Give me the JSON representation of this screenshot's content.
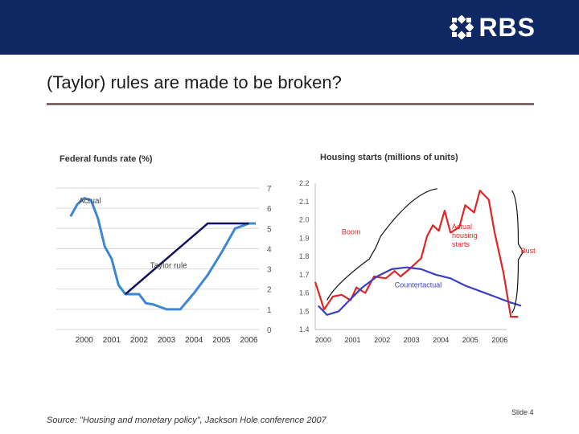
{
  "header": {
    "logo_text": "RBS",
    "brand_color": "#0d2862"
  },
  "slide": {
    "title": "(Taylor) rules are made to be broken?",
    "source": "Source: \"Housing and monetary policy\", Jackson Hole conference 2007",
    "number": "Slide 4"
  },
  "chart_data": [
    {
      "type": "line",
      "title": "Federal funds rate (%)",
      "xlabel": "",
      "ylabel": "",
      "x_ticks": [
        "2000",
        "2001",
        "2002",
        "2003",
        "2004",
        "2005",
        "2006"
      ],
      "y_ticks": [
        "7",
        "6",
        "5",
        "4",
        "3",
        "2",
        "1",
        "0"
      ],
      "ylim": [
        0,
        7
      ],
      "grid": true,
      "annotations": [
        "Actual",
        "Taylor rule"
      ],
      "series": [
        {
          "name": "Actual",
          "color": "#3c86d6",
          "points": [
            [
              2000.0,
              5.6
            ],
            [
              2000.25,
              6.2
            ],
            [
              2000.5,
              6.5
            ],
            [
              2000.75,
              6.4
            ],
            [
              2001.0,
              5.5
            ],
            [
              2001.25,
              4.1
            ],
            [
              2001.5,
              3.5
            ],
            [
              2001.75,
              2.2
            ],
            [
              2002.0,
              1.75
            ],
            [
              2002.5,
              1.75
            ],
            [
              2002.75,
              1.3
            ],
            [
              2003.0,
              1.25
            ],
            [
              2003.5,
              1.0
            ],
            [
              2004.0,
              1.0
            ],
            [
              2004.5,
              1.8
            ],
            [
              2005.0,
              2.7
            ],
            [
              2005.5,
              3.8
            ],
            [
              2006.0,
              5.0
            ],
            [
              2006.5,
              5.25
            ],
            [
              2006.75,
              5.25
            ]
          ]
        },
        {
          "name": "Taylor rule",
          "color": "#12135e",
          "points": [
            [
              2002.0,
              1.75
            ],
            [
              2005.0,
              5.25
            ],
            [
              2006.5,
              5.25
            ]
          ]
        }
      ]
    },
    {
      "type": "line",
      "title": "Housing starts (millions of units)",
      "xlabel": "",
      "ylabel": "",
      "x_ticks": [
        "2000",
        "2001",
        "2002",
        "2003",
        "2004",
        "2005",
        "2006"
      ],
      "y_ticks": [
        "2.2",
        "2.1",
        "2.0",
        "1.9",
        "1.8",
        "1.7",
        "1.6",
        "1.5",
        "1.4"
      ],
      "ylim": [
        1.4,
        2.2
      ],
      "grid": false,
      "annotations": [
        "Boom",
        "Actual housing starts",
        "Countertactual",
        "Bust"
      ],
      "series": [
        {
          "name": "Actual housing starts",
          "color": "#e02525",
          "points": [
            [
              1999.9,
              1.66
            ],
            [
              2000.2,
              1.51
            ],
            [
              2000.5,
              1.58
            ],
            [
              2000.8,
              1.59
            ],
            [
              2001.1,
              1.56
            ],
            [
              2001.3,
              1.63
            ],
            [
              2001.6,
              1.6
            ],
            [
              2001.9,
              1.69
            ],
            [
              2002.3,
              1.68
            ],
            [
              2002.6,
              1.72
            ],
            [
              2002.8,
              1.69
            ],
            [
              2003.1,
              1.73
            ],
            [
              2003.5,
              1.79
            ],
            [
              2003.7,
              1.91
            ],
            [
              2003.9,
              1.97
            ],
            [
              2004.1,
              1.94
            ],
            [
              2004.3,
              2.05
            ],
            [
              2004.5,
              1.93
            ],
            [
              2004.8,
              1.96
            ],
            [
              2005.0,
              2.08
            ],
            [
              2005.3,
              2.04
            ],
            [
              2005.5,
              2.16
            ],
            [
              2005.8,
              2.11
            ],
            [
              2006.0,
              1.93
            ],
            [
              2006.3,
              1.71
            ],
            [
              2006.55,
              1.47
            ],
            [
              2006.8,
              1.47
            ]
          ]
        },
        {
          "name": "Countertactual",
          "color": "#3b3ec2",
          "points": [
            [
              2000.0,
              1.53
            ],
            [
              2000.3,
              1.48
            ],
            [
              2000.7,
              1.5
            ],
            [
              2001.0,
              1.55
            ],
            [
              2001.5,
              1.63
            ],
            [
              2002.0,
              1.69
            ],
            [
              2002.5,
              1.73
            ],
            [
              2003.0,
              1.74
            ],
            [
              2003.5,
              1.73
            ],
            [
              2004.0,
              1.7
            ],
            [
              2004.5,
              1.68
            ],
            [
              2005.0,
              1.64
            ],
            [
              2005.5,
              1.61
            ],
            [
              2006.0,
              1.58
            ],
            [
              2006.5,
              1.55
            ],
            [
              2006.9,
              1.53
            ]
          ]
        }
      ]
    }
  ]
}
